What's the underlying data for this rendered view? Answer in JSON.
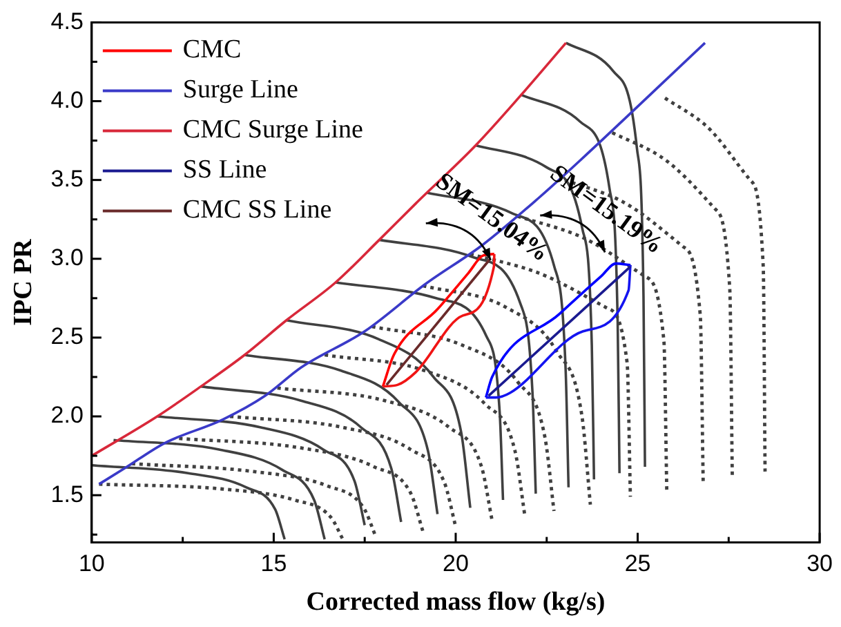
{
  "chart_data": {
    "type": "line",
    "xlabel": "Corrected mass flow (kg/s)",
    "ylabel": "IPC PR",
    "xlim": [
      10,
      30
    ],
    "ylim": [
      1.2,
      4.5
    ],
    "xticks": [
      10,
      {
        "value": 12.5,
        "label": null
      },
      15,
      {
        "value": 17.5,
        "label": null
      },
      20,
      {
        "value": 22.5,
        "label": null
      },
      25,
      {
        "value": 27.5,
        "label": null
      },
      30
    ],
    "yticks": [
      {
        "value": 1.25,
        "label": null
      },
      1.5,
      {
        "value": 1.75,
        "label": null
      },
      {
        "value": 2,
        "label": "2.0"
      },
      {
        "value": 2.25,
        "label": null
      },
      2.5,
      {
        "value": 2.75,
        "label": null
      },
      {
        "value": 3,
        "label": "3.0"
      },
      {
        "value": 3.25,
        "label": null
      },
      3.5,
      {
        "value": 3.75,
        "label": null
      },
      {
        "value": 4,
        "label": "4.0"
      },
      {
        "value": 4.25,
        "label": null
      },
      4.5
    ],
    "grid": false,
    "legend": "top left",
    "marker": "none",
    "series": [
      {
        "color": "#404040",
        "line_style": "solid",
        "x": [
          10,
          12.65,
          14.24,
          15.04,
          15.3
        ],
        "values": [
          1.69,
          1.64,
          1.55,
          1.41,
          1.22
        ]
      },
      {
        "color": "#404040",
        "line_style": "solid",
        "x": [
          10.6,
          13.5,
          15.24,
          16.11,
          16.4
        ],
        "values": [
          1.85,
          1.79,
          1.66,
          1.47,
          1.22
        ]
      },
      {
        "color": "#404040",
        "line_style": "solid",
        "x": [
          11.8,
          14.65,
          16.36,
          17.22,
          17.5
        ],
        "values": [
          2.0,
          1.93,
          1.79,
          1.59,
          1.31
        ]
      },
      {
        "color": "#404040",
        "line_style": "solid",
        "x": [
          13,
          15.75,
          17.4,
          18.23,
          18.5
        ],
        "values": [
          2.19,
          2.1,
          1.93,
          1.67,
          1.33
        ]
      },
      {
        "color": "#404040",
        "line_style": "solid",
        "x": [
          14.2,
          16.85,
          18.44,
          19.24,
          19.5
        ],
        "values": [
          2.39,
          2.29,
          2.09,
          1.78,
          1.38
        ]
      },
      {
        "color": "#404040",
        "line_style": "solid",
        "x": [
          15.35,
          17.88,
          19.39,
          20.15,
          20.4
        ],
        "values": [
          2.61,
          2.49,
          2.25,
          1.9,
          1.42
        ]
      },
      {
        "color": "#404040",
        "line_style": "solid",
        "x": [
          16.7,
          19.46,
          20.84,
          21.21,
          21.3
        ],
        "values": [
          2.85,
          2.75,
          2.51,
          2.02,
          1.47
        ]
      },
      {
        "color": "#404040",
        "line_style": "solid",
        "x": [
          17.9,
          20.48,
          21.77,
          22.11,
          22.2
        ],
        "values": [
          3.12,
          3.01,
          2.72,
          2.15,
          1.51
        ]
      },
      {
        "color": "#404040",
        "line_style": "solid",
        "x": [
          19.2,
          21.54,
          22.71,
          23.02,
          23.1
        ],
        "values": [
          3.42,
          3.29,
          2.95,
          2.3,
          1.55
        ]
      },
      {
        "color": "#404040",
        "line_style": "solid",
        "x": [
          20.55,
          22.5,
          23.48,
          23.74,
          23.8
        ],
        "values": [
          3.72,
          3.58,
          3.19,
          2.45,
          1.6
        ]
      },
      {
        "color": "#404040",
        "line_style": "solid",
        "x": [
          21.8,
          23.42,
          24.23,
          24.45,
          24.5
        ],
        "values": [
          4.04,
          3.87,
          3.44,
          2.6,
          1.64
        ]
      },
      {
        "color": "#404040",
        "line_style": "solid",
        "x": [
          23.03,
          24.33,
          24.98,
          25.16,
          25.2
        ],
        "values": [
          4.37,
          4.19,
          3.7,
          2.76,
          1.68
        ]
      },
      {
        "color": "#404040",
        "line_style": "dotted",
        "x": [
          10.2,
          13.55,
          15.56,
          16.57,
          16.9
        ],
        "values": [
          1.57,
          1.54,
          1.47,
          1.36,
          1.22
        ]
      },
      {
        "color": "#404040",
        "line_style": "dotted",
        "x": [
          11.1,
          14.45,
          16.46,
          17.47,
          17.8
        ],
        "values": [
          1.7,
          1.65,
          1.56,
          1.42,
          1.24
        ]
      },
      {
        "color": "#404040",
        "line_style": "dotted",
        "x": [
          12.4,
          15.75,
          17.76,
          18.77,
          19.1
        ],
        "values": [
          1.86,
          1.8,
          1.68,
          1.51,
          1.27
        ]
      },
      {
        "color": "#404040",
        "line_style": "dotted",
        "x": [
          13.8,
          16.9,
          18.76,
          19.69,
          20
        ],
        "values": [
          2.0,
          1.93,
          1.79,
          1.58,
          1.3
        ]
      },
      {
        "color": "#404040",
        "line_style": "dotted",
        "x": [
          15.1,
          18.05,
          19.82,
          20.71,
          21
        ],
        "values": [
          2.18,
          2.1,
          1.93,
          1.68,
          1.34
        ]
      },
      {
        "color": "#404040",
        "line_style": "dotted",
        "x": [
          16.4,
          19.15,
          20.8,
          21.63,
          21.9
        ],
        "values": [
          2.39,
          2.29,
          2.08,
          1.78,
          1.37
        ]
      },
      {
        "color": "#404040",
        "line_style": "dotted",
        "x": [
          17.7,
          20.2,
          21.7,
          22.45,
          22.7
        ],
        "values": [
          2.57,
          2.45,
          2.22,
          1.87,
          1.4
        ]
      },
      {
        "color": "#404040",
        "line_style": "dotted",
        "x": [
          19.1,
          21.4,
          22.78,
          23.47,
          23.7
        ],
        "values": [
          2.83,
          2.69,
          2.41,
          2.0,
          1.44
        ]
      },
      {
        "color": "#404040",
        "line_style": "dotted",
        "x": [
          20.4,
          22.16,
          24.14,
          24.71,
          24.8
        ],
        "values": [
          3.03,
          2.92,
          2.69,
          2.34,
          1.49
        ]
      },
      {
        "color": "#404040",
        "line_style": "dotted",
        "x": [
          21.7,
          23.34,
          25.19,
          25.72,
          25.8
        ],
        "values": [
          3.27,
          3.15,
          2.89,
          2.48,
          1.52
        ]
      },
      {
        "color": "#404040",
        "line_style": "dotted",
        "x": [
          23,
          24.52,
          26.23,
          26.72,
          26.8
        ],
        "values": [
          3.5,
          3.37,
          3.08,
          2.64,
          1.58
        ]
      },
      {
        "color": "#404040",
        "line_style": "dotted",
        "x": [
          24.3,
          25.62,
          27.11,
          27.53,
          27.6
        ],
        "values": [
          3.8,
          3.65,
          3.32,
          2.81,
          1.61
        ]
      },
      {
        "color": "#404040",
        "line_style": "dotted",
        "x": [
          25.75,
          26.85,
          28.09,
          28.45,
          28.5
        ],
        "values": [
          4.02,
          3.85,
          3.5,
          2.95,
          1.65
        ]
      },
      {
        "color": "#0000ff",
        "line_style": "solid",
        "x": [
          20.83,
          21.0,
          22.85,
          24.0,
          24.4,
          24.8
        ],
        "values": [
          2.12,
          2.25,
          2.65,
          2.89,
          2.97,
          2.96
        ]
      },
      {
        "color": "#1414f0",
        "line_style": "solid",
        "x": [
          20.83,
          21.1,
          21.5,
          23.5,
          24.75,
          24.8
        ],
        "values": [
          2.12,
          2.12,
          2.15,
          2.54,
          2.8,
          2.96
        ]
      },
      {
        "name": "CMC",
        "color": "#ff0000",
        "line_style": "solid",
        "x": [
          18.0,
          18.3,
          19.5,
          20.35,
          20.75,
          21.06
        ],
        "values": [
          2.19,
          2.39,
          2.68,
          2.91,
          3.02,
          3.03
        ]
      },
      {
        "color": "#f01414",
        "line_style": "solid",
        "x": [
          18.0,
          18.4,
          18.9,
          20.2,
          21.05,
          21.06
        ],
        "values": [
          2.19,
          2.2,
          2.28,
          2.64,
          2.95,
          3.03
        ]
      },
      {
        "name": "Surge Line",
        "color": "#3a3ac8",
        "line_style": "solid",
        "x": [
          10.2,
          10.9,
          12.0,
          13.6,
          14.76,
          15.75,
          17.5,
          19.17,
          20.75,
          22.3,
          23.4,
          26.85
        ],
        "values": [
          1.57,
          1.67,
          1.83,
          1.98,
          2.13,
          2.31,
          2.54,
          2.84,
          3.09,
          3.39,
          3.62,
          4.37
        ]
      },
      {
        "name": "CMC Surge Line",
        "color": "#d8283a",
        "line_style": "solid",
        "x": [
          10,
          11.8,
          13,
          14.2,
          15.35,
          16.7,
          17.9,
          18.9,
          20.55,
          21.8,
          23.03
        ],
        "values": [
          1.75,
          2.0,
          2.19,
          2.39,
          2.61,
          2.85,
          3.12,
          3.35,
          3.72,
          4.04,
          4.37
        ]
      },
      {
        "name": "SS Line",
        "color": "#1a1a90",
        "line_style": "solid",
        "x": [
          20.9,
          24.8
        ],
        "values": [
          2.13,
          2.95
        ]
      },
      {
        "name": "CMC SS Line",
        "color": "#6a2a2a",
        "line_style": "solid",
        "x": [
          18.1,
          20.95
        ],
        "values": [
          2.2,
          3.0
        ]
      }
    ],
    "annotations": [
      "SM=15.04%",
      "SM=15.19%"
    ]
  }
}
